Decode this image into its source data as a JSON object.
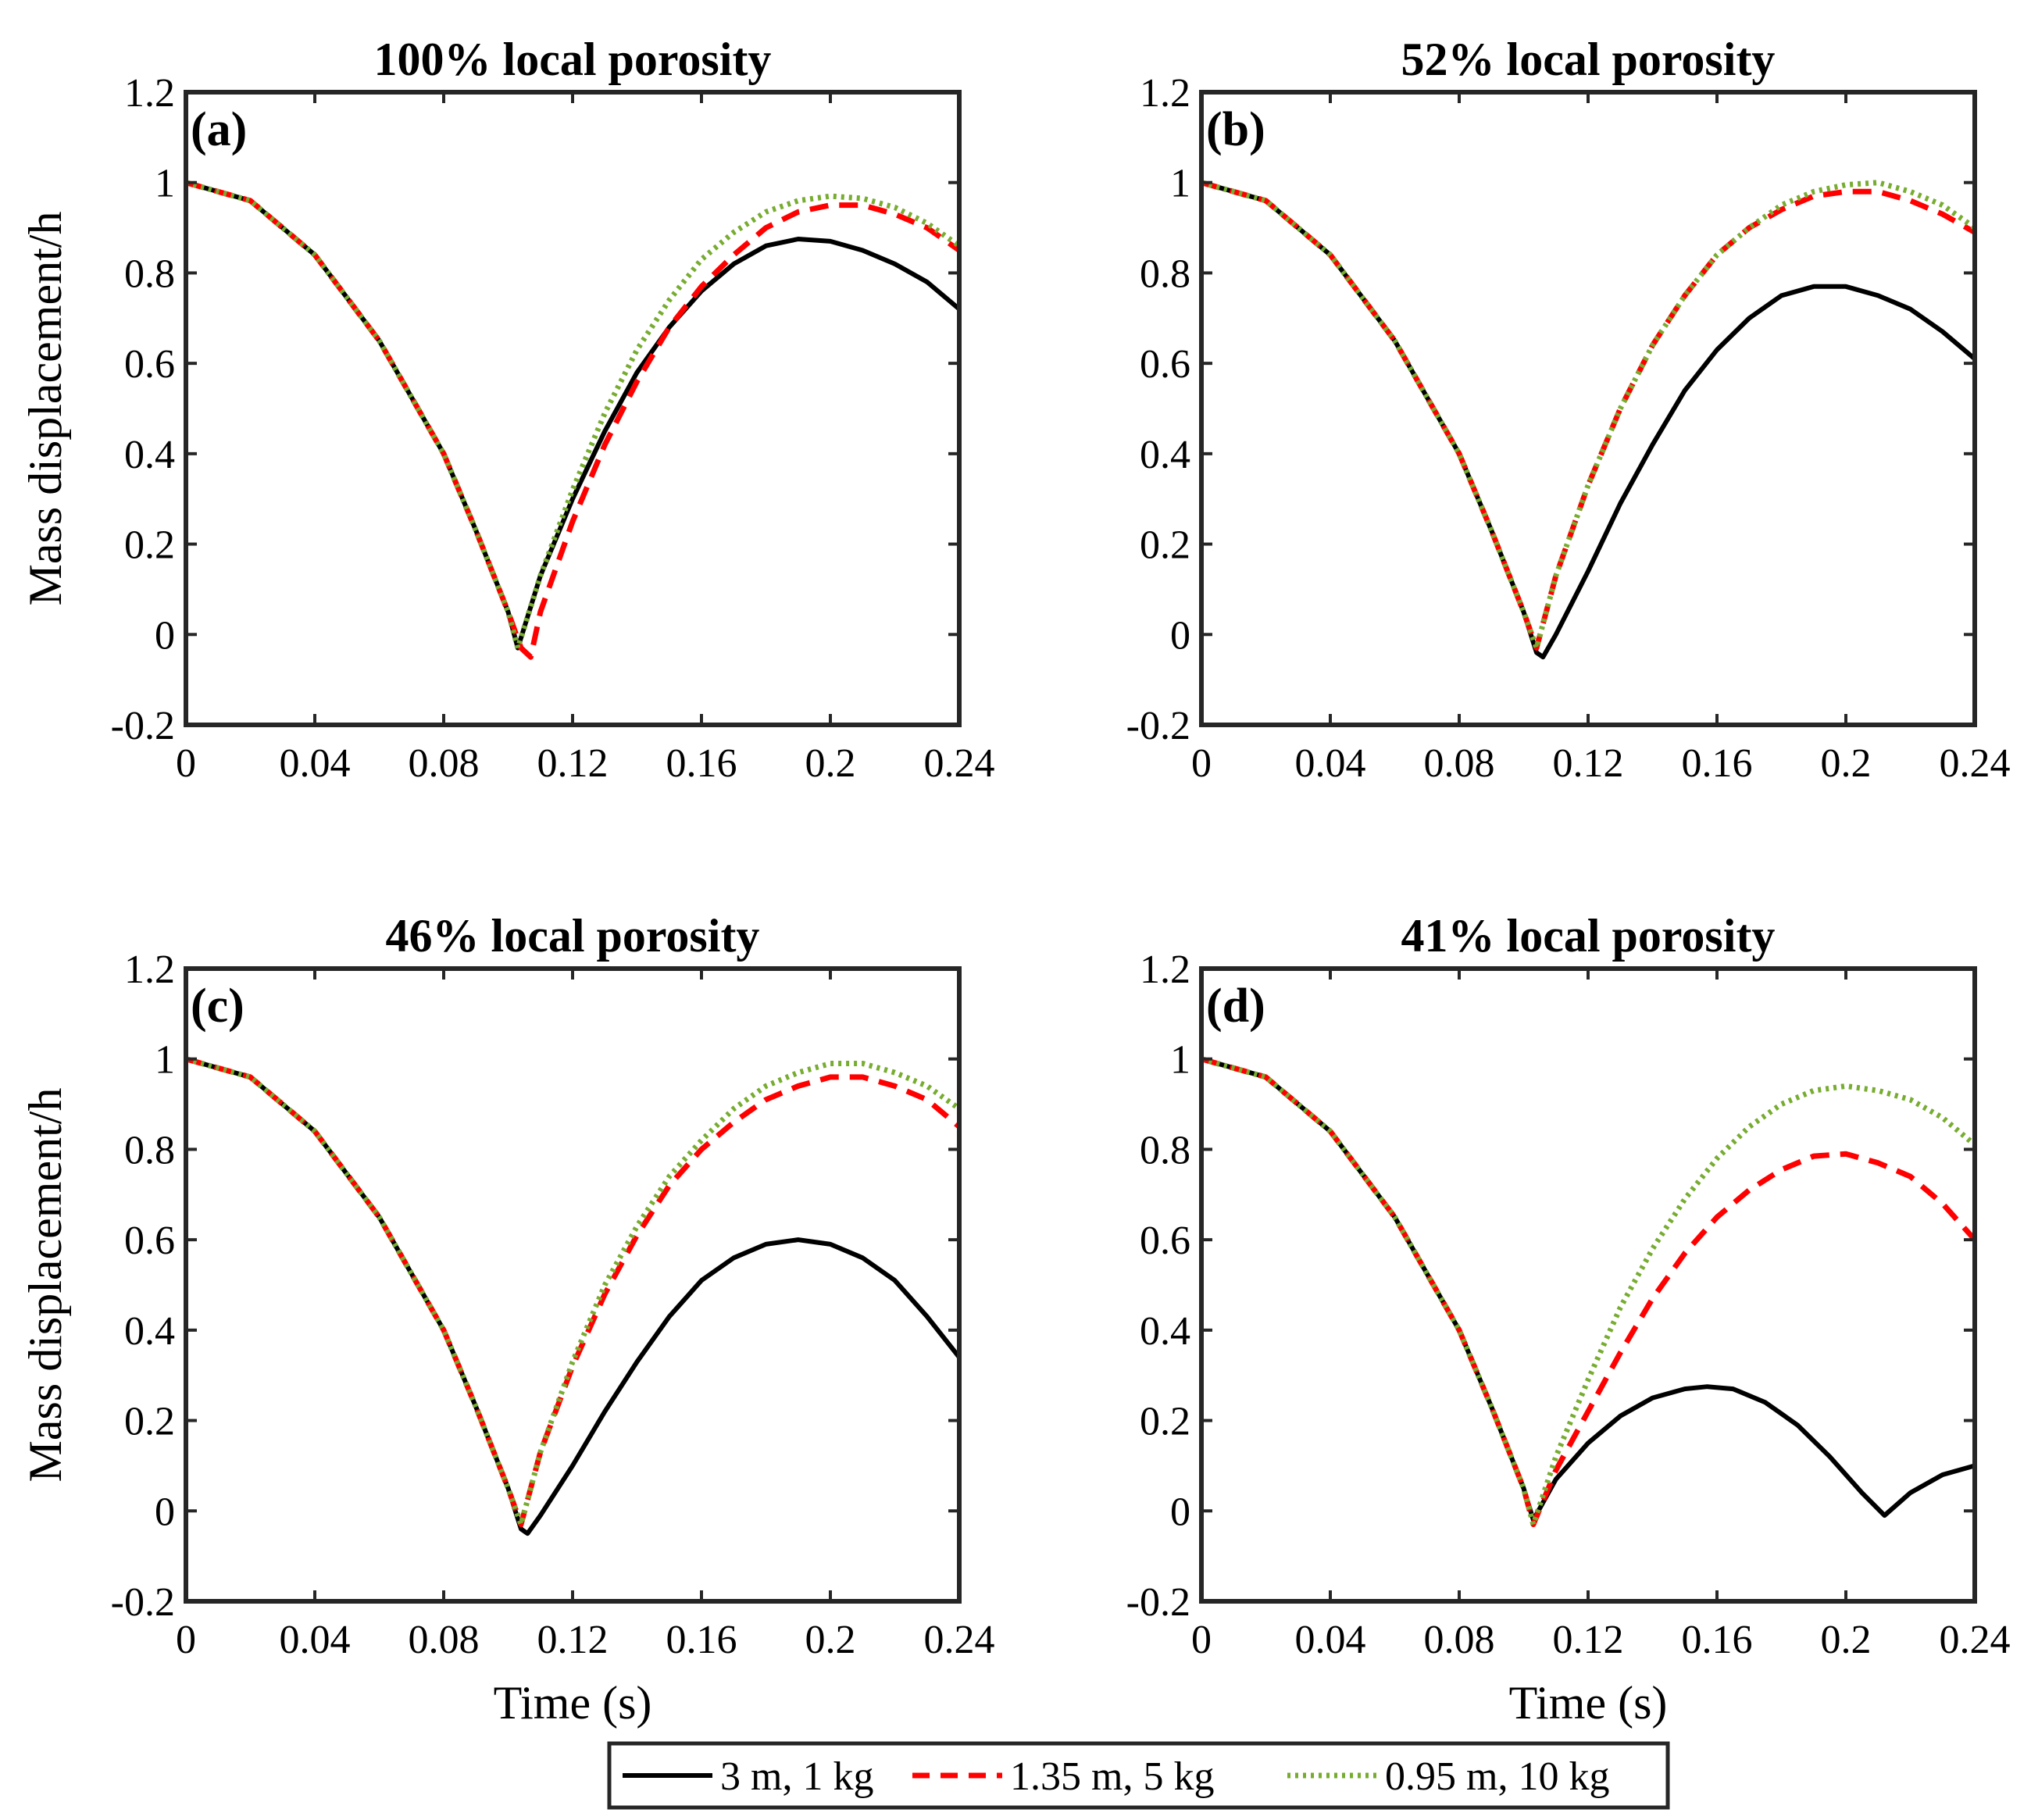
{
  "chart_data": [
    {
      "type": "line",
      "panel_label": "(a)",
      "title": "100% local porosity",
      "xlabel": "",
      "ylabel": "Mass displacement/h",
      "xlim": [
        0,
        0.24
      ],
      "ylim": [
        -0.2,
        1.2
      ],
      "xticks": [
        "0",
        "0.04",
        "0.08",
        "0.12",
        "0.16",
        "0.2",
        "0.24"
      ],
      "yticks": [
        "-0.2",
        "0",
        "0.2",
        "0.4",
        "0.6",
        "0.8",
        "1",
        "1.2"
      ],
      "series": [
        {
          "name": "3 m, 1 kg",
          "x": [
            0,
            0.02,
            0.04,
            0.06,
            0.08,
            0.09,
            0.1,
            0.103,
            0.11,
            0.12,
            0.13,
            0.14,
            0.15,
            0.16,
            0.17,
            0.18,
            0.19,
            0.2,
            0.21,
            0.22,
            0.23,
            0.24
          ],
          "y": [
            1.0,
            0.96,
            0.84,
            0.65,
            0.4,
            0.23,
            0.05,
            -0.03,
            0.13,
            0.3,
            0.45,
            0.58,
            0.68,
            0.76,
            0.82,
            0.86,
            0.875,
            0.87,
            0.85,
            0.82,
            0.78,
            0.72
          ]
        },
        {
          "name": "1.35 m, 5 kg",
          "x": [
            0,
            0.02,
            0.04,
            0.06,
            0.08,
            0.09,
            0.1,
            0.104,
            0.107,
            0.11,
            0.12,
            0.13,
            0.14,
            0.15,
            0.16,
            0.17,
            0.18,
            0.19,
            0.2,
            0.21,
            0.22,
            0.23,
            0.24
          ],
          "y": [
            1.0,
            0.96,
            0.84,
            0.65,
            0.4,
            0.23,
            0.05,
            -0.03,
            -0.05,
            0.05,
            0.25,
            0.42,
            0.56,
            0.68,
            0.77,
            0.84,
            0.9,
            0.935,
            0.95,
            0.95,
            0.93,
            0.9,
            0.85
          ]
        },
        {
          "name": "0.95 m, 10 kg",
          "x": [
            0,
            0.02,
            0.04,
            0.06,
            0.08,
            0.09,
            0.1,
            0.103,
            0.11,
            0.12,
            0.13,
            0.14,
            0.15,
            0.16,
            0.17,
            0.18,
            0.19,
            0.2,
            0.21,
            0.22,
            0.23,
            0.24
          ],
          "y": [
            1.0,
            0.96,
            0.84,
            0.65,
            0.4,
            0.23,
            0.05,
            -0.03,
            0.13,
            0.32,
            0.49,
            0.63,
            0.74,
            0.83,
            0.89,
            0.935,
            0.96,
            0.97,
            0.965,
            0.945,
            0.91,
            0.86
          ]
        }
      ]
    },
    {
      "type": "line",
      "panel_label": "(b)",
      "title": "52% local porosity",
      "xlabel": "",
      "ylabel": "",
      "xlim": [
        0,
        0.24
      ],
      "ylim": [
        -0.2,
        1.2
      ],
      "xticks": [
        "0",
        "0.04",
        "0.08",
        "0.12",
        "0.16",
        "0.2",
        "0.24"
      ],
      "yticks": [
        "-0.2",
        "0",
        "0.2",
        "0.4",
        "0.6",
        "0.8",
        "1",
        "1.2"
      ],
      "series": [
        {
          "name": "3 m, 1 kg",
          "x": [
            0,
            0.02,
            0.04,
            0.06,
            0.08,
            0.09,
            0.1,
            0.104,
            0.106,
            0.11,
            0.12,
            0.13,
            0.14,
            0.15,
            0.16,
            0.17,
            0.18,
            0.19,
            0.2,
            0.21,
            0.22,
            0.23,
            0.24
          ],
          "y": [
            1.0,
            0.96,
            0.84,
            0.65,
            0.4,
            0.23,
            0.05,
            -0.04,
            -0.05,
            0.0,
            0.14,
            0.29,
            0.42,
            0.54,
            0.63,
            0.7,
            0.75,
            0.77,
            0.77,
            0.75,
            0.72,
            0.67,
            0.61
          ]
        },
        {
          "name": "1.35 m, 5 kg",
          "x": [
            0,
            0.02,
            0.04,
            0.06,
            0.08,
            0.09,
            0.1,
            0.104,
            0.11,
            0.12,
            0.13,
            0.14,
            0.15,
            0.16,
            0.17,
            0.18,
            0.19,
            0.2,
            0.21,
            0.22,
            0.23,
            0.24
          ],
          "y": [
            1.0,
            0.96,
            0.84,
            0.65,
            0.4,
            0.23,
            0.05,
            -0.03,
            0.13,
            0.33,
            0.5,
            0.64,
            0.75,
            0.84,
            0.9,
            0.94,
            0.97,
            0.98,
            0.98,
            0.96,
            0.93,
            0.89
          ]
        },
        {
          "name": "0.95 m, 10 kg",
          "x": [
            0,
            0.02,
            0.04,
            0.06,
            0.08,
            0.09,
            0.1,
            0.104,
            0.11,
            0.12,
            0.13,
            0.14,
            0.15,
            0.16,
            0.17,
            0.18,
            0.19,
            0.2,
            0.21,
            0.22,
            0.23,
            0.24
          ],
          "y": [
            1.0,
            0.96,
            0.84,
            0.65,
            0.4,
            0.23,
            0.05,
            -0.03,
            0.13,
            0.33,
            0.5,
            0.64,
            0.75,
            0.84,
            0.9,
            0.95,
            0.98,
            0.995,
            1.0,
            0.98,
            0.95,
            0.9
          ]
        }
      ]
    },
    {
      "type": "line",
      "panel_label": "(c)",
      "title": "46% local porosity",
      "xlabel": "Time (s)",
      "ylabel": "Mass displacement/h",
      "xlim": [
        0,
        0.24
      ],
      "ylim": [
        -0.2,
        1.2
      ],
      "xticks": [
        "0",
        "0.04",
        "0.08",
        "0.12",
        "0.16",
        "0.2",
        "0.24"
      ],
      "yticks": [
        "-0.2",
        "0",
        "0.2",
        "0.4",
        "0.6",
        "0.8",
        "1",
        "1.2"
      ],
      "series": [
        {
          "name": "3 m, 1 kg",
          "x": [
            0,
            0.02,
            0.04,
            0.06,
            0.08,
            0.09,
            0.1,
            0.104,
            0.106,
            0.11,
            0.12,
            0.13,
            0.14,
            0.15,
            0.16,
            0.17,
            0.18,
            0.19,
            0.2,
            0.21,
            0.22,
            0.23,
            0.24
          ],
          "y": [
            1.0,
            0.96,
            0.84,
            0.65,
            0.4,
            0.23,
            0.05,
            -0.04,
            -0.05,
            -0.01,
            0.1,
            0.22,
            0.33,
            0.43,
            0.51,
            0.56,
            0.59,
            0.6,
            0.59,
            0.56,
            0.51,
            0.43,
            0.34
          ]
        },
        {
          "name": "1.35 m, 5 kg",
          "x": [
            0,
            0.02,
            0.04,
            0.06,
            0.08,
            0.09,
            0.1,
            0.104,
            0.11,
            0.12,
            0.13,
            0.14,
            0.15,
            0.16,
            0.17,
            0.18,
            0.19,
            0.2,
            0.21,
            0.22,
            0.23,
            0.24
          ],
          "y": [
            1.0,
            0.96,
            0.84,
            0.65,
            0.4,
            0.23,
            0.05,
            -0.03,
            0.13,
            0.32,
            0.48,
            0.61,
            0.72,
            0.8,
            0.86,
            0.91,
            0.94,
            0.96,
            0.96,
            0.94,
            0.91,
            0.85
          ]
        },
        {
          "name": "0.95 m, 10 kg",
          "x": [
            0,
            0.02,
            0.04,
            0.06,
            0.08,
            0.09,
            0.1,
            0.104,
            0.11,
            0.12,
            0.13,
            0.14,
            0.15,
            0.16,
            0.17,
            0.18,
            0.19,
            0.2,
            0.21,
            0.22,
            0.23,
            0.24
          ],
          "y": [
            1.0,
            0.96,
            0.84,
            0.65,
            0.4,
            0.23,
            0.05,
            -0.03,
            0.13,
            0.33,
            0.5,
            0.63,
            0.74,
            0.82,
            0.89,
            0.94,
            0.97,
            0.99,
            0.99,
            0.97,
            0.94,
            0.89
          ]
        }
      ]
    },
    {
      "type": "line",
      "panel_label": "(d)",
      "title": "41% local porosity",
      "xlabel": "Time (s)",
      "ylabel": "",
      "xlim": [
        0,
        0.24
      ],
      "ylim": [
        -0.2,
        1.2
      ],
      "xticks": [
        "0",
        "0.04",
        "0.08",
        "0.12",
        "0.16",
        "0.2",
        "0.24"
      ],
      "yticks": [
        "-0.2",
        "0",
        "0.2",
        "0.4",
        "0.6",
        "0.8",
        "1",
        "1.2"
      ],
      "series": [
        {
          "name": "3 m, 1 kg",
          "x": [
            0,
            0.02,
            0.04,
            0.06,
            0.08,
            0.09,
            0.1,
            0.103,
            0.11,
            0.12,
            0.13,
            0.14,
            0.15,
            0.157,
            0.165,
            0.175,
            0.185,
            0.195,
            0.205,
            0.212,
            0.22,
            0.23,
            0.24
          ],
          "y": [
            1.0,
            0.96,
            0.84,
            0.65,
            0.4,
            0.23,
            0.05,
            -0.02,
            0.07,
            0.15,
            0.21,
            0.25,
            0.27,
            0.275,
            0.27,
            0.24,
            0.19,
            0.12,
            0.04,
            -0.01,
            0.04,
            0.08,
            0.1
          ]
        },
        {
          "name": "1.35 m, 5 kg",
          "x": [
            0,
            0.02,
            0.04,
            0.06,
            0.08,
            0.09,
            0.1,
            0.103,
            0.11,
            0.12,
            0.13,
            0.14,
            0.15,
            0.16,
            0.17,
            0.18,
            0.19,
            0.2,
            0.21,
            0.22,
            0.23,
            0.24
          ],
          "y": [
            1.0,
            0.96,
            0.84,
            0.65,
            0.4,
            0.23,
            0.05,
            -0.03,
            0.09,
            0.22,
            0.35,
            0.47,
            0.57,
            0.65,
            0.71,
            0.755,
            0.785,
            0.79,
            0.77,
            0.74,
            0.68,
            0.6
          ]
        },
        {
          "name": "0.95 m, 10 kg",
          "x": [
            0,
            0.02,
            0.04,
            0.06,
            0.08,
            0.09,
            0.1,
            0.103,
            0.11,
            0.12,
            0.13,
            0.14,
            0.15,
            0.16,
            0.17,
            0.18,
            0.19,
            0.2,
            0.21,
            0.22,
            0.23,
            0.24
          ],
          "y": [
            1.0,
            0.96,
            0.84,
            0.65,
            0.4,
            0.23,
            0.05,
            -0.03,
            0.12,
            0.29,
            0.45,
            0.58,
            0.69,
            0.78,
            0.85,
            0.9,
            0.93,
            0.94,
            0.93,
            0.91,
            0.87,
            0.81
          ]
        }
      ]
    }
  ],
  "legend": {
    "placement": "bottom-center",
    "entries": [
      {
        "label": "3 m, 1 kg",
        "color": "#000000",
        "style": "solid"
      },
      {
        "label": "1.35 m, 5 kg",
        "color": "#ff0000",
        "style": "dashed"
      },
      {
        "label": "0.95 m, 10 kg",
        "color": "#77ac30",
        "style": "dotted"
      }
    ]
  },
  "colors": {
    "series_1": "#000000",
    "series_2": "#ff0000",
    "series_3": "#77ac30",
    "axes": "#262626"
  }
}
